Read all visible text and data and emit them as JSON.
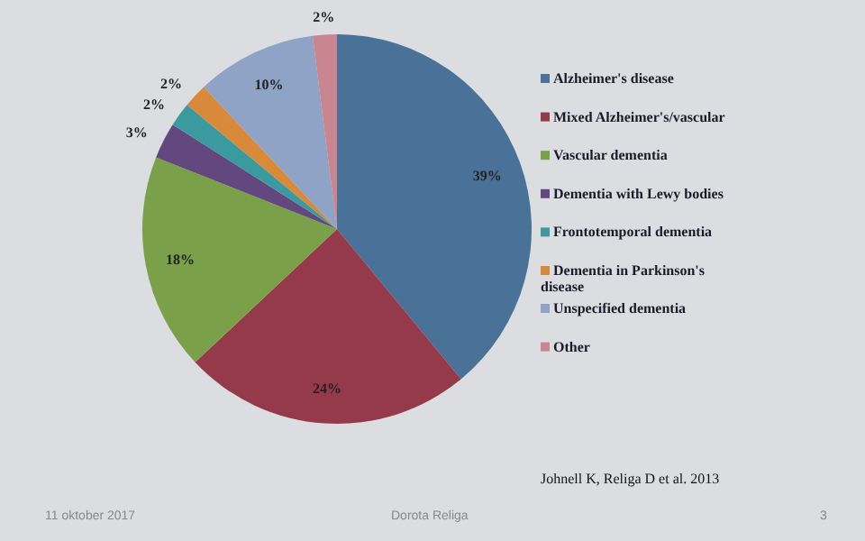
{
  "chart_data": {
    "type": "pie",
    "categories": [
      "Alzheimer's disease",
      "Mixed Alzheimer's/vascular",
      "Vascular dementia",
      "Dementia with Lewy bodies",
      "Frontotemporal dementia",
      "Dementia in Parkinson's disease",
      "Unspecified dementia",
      "Other"
    ],
    "values": [
      39,
      24,
      18,
      3,
      2,
      2,
      10,
      2
    ],
    "colors": [
      "#4a7298",
      "#953a4a",
      "#7ba04a",
      "#62487f",
      "#3a9aa0",
      "#d88a3a",
      "#8fa3c6",
      "#c98690"
    ],
    "value_labels": [
      "39%",
      "24%",
      "18%",
      "3%",
      "2%",
      "2%",
      "10%",
      "2%"
    ],
    "legend": "right",
    "annotations": [
      "Johnell K, Religa D et al. 2013",
      "11 oktober 2017",
      "Dorota Religa",
      "3"
    ]
  }
}
